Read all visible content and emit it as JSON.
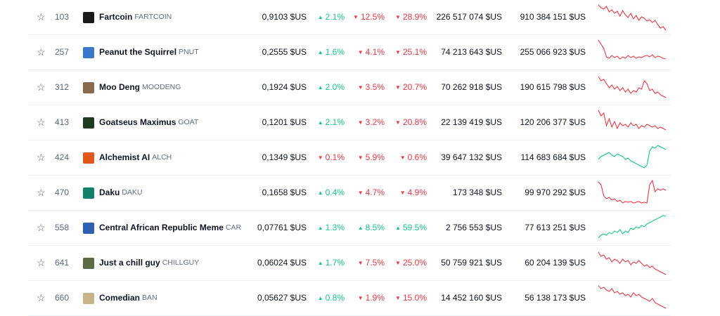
{
  "table": {
    "rows": [
      {
        "rank": "103",
        "name": "Fartcoin",
        "symbol": "FARTCOIN",
        "price": "0,9103 $US",
        "h1": "2.1%",
        "h1_dir": "up",
        "h24": "12.5%",
        "h24_dir": "down",
        "d7": "28.9%",
        "d7_dir": "down",
        "volume": "226 517 074 $US",
        "market_cap": "910 384 151 $US",
        "trend": "down",
        "logo_color": "#1a1a1a",
        "spark": [
          2,
          6,
          8,
          4,
          12,
          9,
          14,
          11,
          18,
          10,
          16,
          20,
          14,
          22,
          17,
          24,
          19,
          21,
          25,
          23,
          27,
          24,
          30,
          35,
          33,
          38
        ]
      },
      {
        "rank": "257",
        "name": "Peanut the Squirrel",
        "symbol": "PNUT",
        "price": "0,2555 $US",
        "h1": "1.6%",
        "h1_dir": "up",
        "h24": "4.1%",
        "h24_dir": "down",
        "d7": "25.1%",
        "d7_dir": "down",
        "volume": "74 213 643 $US",
        "market_cap": "255 066 923 $US",
        "trend": "down",
        "logo_color": "#3a78c9",
        "spark": [
          2,
          8,
          14,
          26,
          28,
          24,
          27,
          25,
          29,
          26,
          28,
          24,
          27,
          25,
          28,
          26,
          27,
          25,
          24,
          26,
          23,
          27,
          25,
          26,
          28,
          29
        ]
      },
      {
        "rank": "312",
        "name": "Moo Deng",
        "symbol": "MOODENG",
        "price": "0,1924 $US",
        "h1": "2.0%",
        "h1_dir": "up",
        "h24": "3.5%",
        "h24_dir": "down",
        "d7": "20.7%",
        "d7_dir": "down",
        "volume": "70 262 918 $US",
        "market_cap": "190 615 798 $US",
        "trend": "down",
        "logo_color": "#8a6a4c",
        "spark": [
          4,
          10,
          8,
          14,
          20,
          16,
          22,
          18,
          24,
          20,
          26,
          22,
          28,
          24,
          26,
          20,
          22,
          10,
          14,
          24,
          22,
          28,
          26,
          30,
          32,
          34
        ]
      },
      {
        "rank": "413",
        "name": "Goatseus Maximus",
        "symbol": "GOAT",
        "price": "0,1201 $US",
        "h1": "2.1%",
        "h1_dir": "up",
        "h24": "3.2%",
        "h24_dir": "down",
        "d7": "20.8%",
        "d7_dir": "down",
        "volume": "22 139 419 $US",
        "market_cap": "120 206 377 $US",
        "trend": "down",
        "logo_color": "#1f3b20",
        "spark": [
          2,
          10,
          6,
          24,
          14,
          26,
          18,
          28,
          20,
          24,
          22,
          26,
          20,
          24,
          22,
          28,
          24,
          26,
          22,
          24,
          26,
          24,
          28,
          26,
          28,
          30
        ]
      },
      {
        "rank": "424",
        "name": "Alchemist AI",
        "symbol": "ALCH",
        "price": "0,1349 $US",
        "h1": "0.1%",
        "h1_dir": "down",
        "h24": "5.9%",
        "h24_dir": "down",
        "d7": "0.6%",
        "d7_dir": "down",
        "volume": "39 647 132 $US",
        "market_cap": "114 683 684 $US",
        "trend": "up",
        "logo_color": "#e0571b",
        "spark": [
          22,
          18,
          16,
          14,
          12,
          16,
          18,
          14,
          16,
          18,
          22,
          20,
          24,
          26,
          28,
          30,
          32,
          34,
          30,
          10,
          4,
          6,
          2,
          4,
          6,
          8
        ]
      },
      {
        "rank": "470",
        "name": "Daku",
        "symbol": "DAKU",
        "price": "0,1658 $US",
        "h1": "0.4%",
        "h1_dir": "up",
        "h24": "4.7%",
        "h24_dir": "down",
        "d7": "4.9%",
        "d7_dir": "down",
        "volume": "173 348 $US",
        "market_cap": "99 970 292 $US",
        "trend": "down",
        "logo_color": "#12806b",
        "spark": [
          4,
          8,
          24,
          28,
          26,
          30,
          28,
          32,
          30,
          34,
          32,
          33,
          32,
          34,
          33,
          32,
          34,
          33,
          34,
          8,
          2,
          18,
          14,
          16,
          14,
          16
        ]
      },
      {
        "rank": "558",
        "name": "Central African Republic Meme",
        "symbol": "CAR",
        "price": "0,07761 $US",
        "h1": "1.3%",
        "h1_dir": "up",
        "h24": "8.5%",
        "h24_dir": "up",
        "d7": "59.5%",
        "d7_dir": "up",
        "volume": "2 756 553 $US",
        "market_cap": "77 613 251 $US",
        "trend": "up",
        "logo_color": "#2f5fb3",
        "spark": [
          34,
          30,
          28,
          30,
          26,
          28,
          24,
          26,
          22,
          28,
          24,
          26,
          20,
          22,
          18,
          20,
          16,
          18,
          14,
          12,
          10,
          8,
          6,
          4,
          2,
          3
        ]
      },
      {
        "rank": "641",
        "name": "Just a chill guy",
        "symbol": "CHILLGUY",
        "price": "0,06024 $US",
        "h1": "1.7%",
        "h1_dir": "up",
        "h24": "7.5%",
        "h24_dir": "down",
        "d7": "25.0%",
        "d7_dir": "down",
        "volume": "50 759 921 $US",
        "market_cap": "60 204 139 $US",
        "trend": "down",
        "logo_color": "#5d6b45",
        "spark": [
          4,
          10,
          8,
          14,
          12,
          18,
          14,
          16,
          20,
          14,
          18,
          16,
          22,
          18,
          20,
          16,
          20,
          24,
          22,
          26,
          24,
          28,
          30,
          32,
          34,
          36
        ]
      },
      {
        "rank": "660",
        "name": "Comedian",
        "symbol": "BAN",
        "price": "0,05627 $US",
        "h1": "0.8%",
        "h1_dir": "up",
        "h24": "1.9%",
        "h24_dir": "down",
        "d7": "15.0%",
        "d7_dir": "down",
        "volume": "14 452 160 $US",
        "market_cap": "56 138 173 $US",
        "trend": "down",
        "logo_color": "#c9b48a",
        "spark": [
          2,
          6,
          4,
          8,
          10,
          6,
          12,
          10,
          14,
          12,
          16,
          14,
          18,
          12,
          16,
          14,
          18,
          20,
          22,
          24,
          20,
          26,
          28,
          30,
          32,
          34
        ]
      }
    ]
  },
  "colors": {
    "up": "#16c784",
    "down": "#ea3943",
    "text": "#0d1421",
    "muted": "#616e85",
    "border": "#eff2f5"
  },
  "icons": {
    "favorite": "star-outline-icon",
    "up_arrow": "caret-up-icon",
    "down_arrow": "caret-down-icon"
  }
}
